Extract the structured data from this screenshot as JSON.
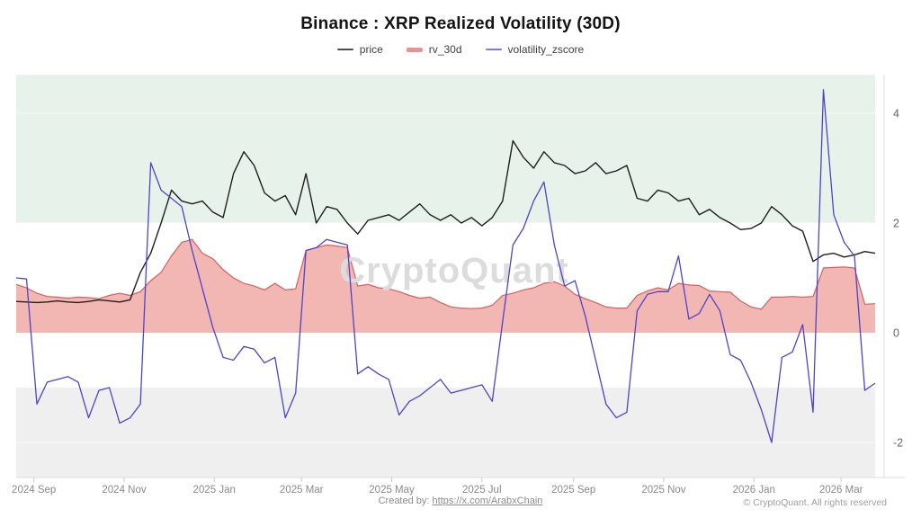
{
  "title": "Binance : XRP Realized Volatility (30D)",
  "watermark": "CryptoQuant",
  "legend": [
    {
      "label": "price",
      "swatch_color": "#4d4d4d",
      "thick": false
    },
    {
      "label": "rv_30d",
      "swatch_color": "#ef908d",
      "thick": true
    },
    {
      "label": "volatility_zscore",
      "swatch_color": "#8278d8",
      "thick": false
    }
  ],
  "footer": {
    "created_by_prefix": "Created by: ",
    "created_by_link": "https://x.com/ArabxChain",
    "copyright": "© CryptoQuant. All rights reserved"
  },
  "colors": {
    "band_green": "#e7f2ea",
    "band_gray": "#efefef",
    "price_line": "#1f1f1f",
    "rv_fill": "#f1aeab",
    "rv_stroke": "#d5605e",
    "zscore_line": "#4f43cb",
    "axis_line": "#dcdcdc",
    "tick_mark": "#c8c8c8",
    "x_label": "#8a8a8a",
    "y_label": "#666666",
    "watermark": "#dcdcdc"
  },
  "chart_data": {
    "type": "line",
    "title": "Binance : XRP Realized Volatility (30D)",
    "grid": false,
    "legend_position": "top",
    "ylim": [
      -2.64,
      4.7
    ],
    "y_ticks": [
      4,
      2,
      0,
      -2
    ],
    "bands": [
      {
        "kind": "above",
        "value": 2,
        "color": "#e7f2ea"
      },
      {
        "kind": "below",
        "value": -1,
        "color": "#efefef"
      }
    ],
    "x_tick_labels": [
      "2024 Sep",
      "2024 Nov",
      "2025 Jan",
      "2025 Mar",
      "2025 May",
      "2025 Jul",
      "2025 Sep",
      "2025 Nov",
      "2026 Jan",
      "2026 Mar"
    ],
    "x_tick_index": [
      1.71,
      10.43,
      19.14,
      27.57,
      36.29,
      45.0,
      53.86,
      62.57,
      71.29,
      79.71
    ],
    "x_dates": [
      "2024-08-20",
      "2024-08-27",
      "2024-09-03",
      "2024-09-10",
      "2024-09-17",
      "2024-09-24",
      "2024-10-01",
      "2024-10-08",
      "2024-10-15",
      "2024-10-22",
      "2024-10-29",
      "2024-11-05",
      "2024-11-12",
      "2024-11-19",
      "2024-11-26",
      "2024-12-03",
      "2024-12-10",
      "2024-12-17",
      "2024-12-24",
      "2024-12-31",
      "2025-01-07",
      "2025-01-14",
      "2025-01-21",
      "2025-01-28",
      "2025-02-04",
      "2025-02-11",
      "2025-02-18",
      "2025-02-25",
      "2025-03-04",
      "2025-03-11",
      "2025-03-18",
      "2025-03-25",
      "2025-04-01",
      "2025-04-08",
      "2025-04-15",
      "2025-04-22",
      "2025-04-29",
      "2025-05-06",
      "2025-05-13",
      "2025-05-20",
      "2025-05-27",
      "2025-06-03",
      "2025-06-10",
      "2025-06-17",
      "2025-06-24",
      "2025-07-01",
      "2025-07-08",
      "2025-07-15",
      "2025-07-22",
      "2025-07-29",
      "2025-08-05",
      "2025-08-12",
      "2025-08-19",
      "2025-08-26",
      "2025-09-02",
      "2025-09-09",
      "2025-09-16",
      "2025-09-23",
      "2025-09-30",
      "2025-10-07",
      "2025-10-14",
      "2025-10-21",
      "2025-10-28",
      "2025-11-04",
      "2025-11-11",
      "2025-11-18",
      "2025-11-25",
      "2025-12-02",
      "2025-12-09",
      "2025-12-16",
      "2025-12-23",
      "2025-12-30",
      "2026-01-06",
      "2026-01-13",
      "2026-01-20",
      "2026-01-27",
      "2026-02-03",
      "2026-02-10",
      "2026-02-17",
      "2026-02-24",
      "2026-03-03",
      "2026-03-10",
      "2026-03-17",
      "2026-03-24"
    ],
    "series": [
      {
        "name": "price",
        "kind": "line",
        "color": "#1f1f1f",
        "values": [
          0.57,
          0.56,
          0.55,
          0.56,
          0.58,
          0.56,
          0.55,
          0.57,
          0.6,
          0.58,
          0.56,
          0.6,
          1.1,
          1.45,
          2.0,
          2.6,
          2.4,
          2.35,
          2.4,
          2.2,
          2.1,
          2.9,
          3.3,
          3.05,
          2.55,
          2.4,
          2.5,
          2.15,
          2.9,
          2.0,
          2.3,
          2.25,
          2.0,
          1.8,
          2.05,
          2.1,
          2.15,
          2.05,
          2.2,
          2.35,
          2.15,
          2.05,
          2.15,
          2.0,
          2.1,
          1.95,
          2.1,
          2.4,
          3.5,
          3.2,
          3.0,
          3.3,
          3.1,
          3.05,
          2.9,
          2.95,
          3.1,
          2.9,
          2.95,
          3.05,
          2.45,
          2.4,
          2.6,
          2.55,
          2.4,
          2.45,
          2.15,
          2.25,
          2.1,
          2.0,
          1.88,
          1.9,
          2.0,
          2.3,
          2.15,
          1.95,
          1.85,
          1.3,
          1.42,
          1.45,
          1.38,
          1.42,
          1.48,
          1.45
        ]
      },
      {
        "name": "rv_30d",
        "kind": "area",
        "fill": "#f1aeab",
        "stroke": "#d5605e",
        "baseline": 0,
        "values": [
          0.88,
          0.82,
          0.72,
          0.66,
          0.65,
          0.63,
          0.65,
          0.64,
          0.62,
          0.68,
          0.72,
          0.68,
          0.75,
          0.95,
          1.1,
          1.4,
          1.65,
          1.7,
          1.45,
          1.35,
          1.15,
          1.0,
          0.9,
          0.85,
          0.78,
          0.9,
          0.78,
          0.8,
          1.5,
          1.55,
          1.6,
          1.58,
          1.55,
          0.85,
          0.88,
          0.82,
          0.8,
          0.75,
          0.68,
          0.63,
          0.65,
          0.55,
          0.47,
          0.45,
          0.44,
          0.45,
          0.5,
          0.68,
          0.72,
          0.78,
          0.82,
          0.9,
          0.93,
          0.85,
          0.7,
          0.62,
          0.55,
          0.47,
          0.45,
          0.45,
          0.68,
          0.76,
          0.82,
          0.78,
          0.9,
          0.87,
          0.86,
          0.76,
          0.75,
          0.74,
          0.58,
          0.47,
          0.43,
          0.65,
          0.65,
          0.66,
          0.65,
          0.66,
          1.18,
          1.19,
          1.2,
          1.18,
          0.52,
          0.53
        ]
      },
      {
        "name": "volatility_zscore",
        "kind": "line",
        "color": "#4f43cb",
        "values": [
          1.0,
          0.98,
          -1.3,
          -0.9,
          -0.85,
          -0.8,
          -0.9,
          -1.55,
          -1.05,
          -1.0,
          -1.65,
          -1.55,
          -1.3,
          3.1,
          2.6,
          2.45,
          2.3,
          1.5,
          0.8,
          0.1,
          -0.45,
          -0.5,
          -0.25,
          -0.3,
          -0.55,
          -0.45,
          -1.55,
          -1.1,
          1.5,
          1.55,
          1.7,
          1.65,
          1.6,
          -0.75,
          -0.62,
          -0.75,
          -0.85,
          -1.5,
          -1.25,
          -1.15,
          -1.0,
          -0.85,
          -1.1,
          -1.05,
          -1.0,
          -0.95,
          -1.25,
          0.2,
          1.6,
          1.9,
          2.4,
          2.75,
          1.6,
          0.85,
          0.95,
          0.3,
          -0.5,
          -1.3,
          -1.55,
          -1.45,
          0.4,
          0.7,
          0.75,
          0.75,
          1.4,
          0.25,
          0.35,
          0.7,
          0.4,
          -0.4,
          -0.5,
          -0.9,
          -1.4,
          -2.0,
          -0.45,
          -0.35,
          0.15,
          -1.45,
          4.43,
          2.15,
          1.65,
          1.4,
          -1.05,
          -0.92
        ]
      }
    ]
  }
}
